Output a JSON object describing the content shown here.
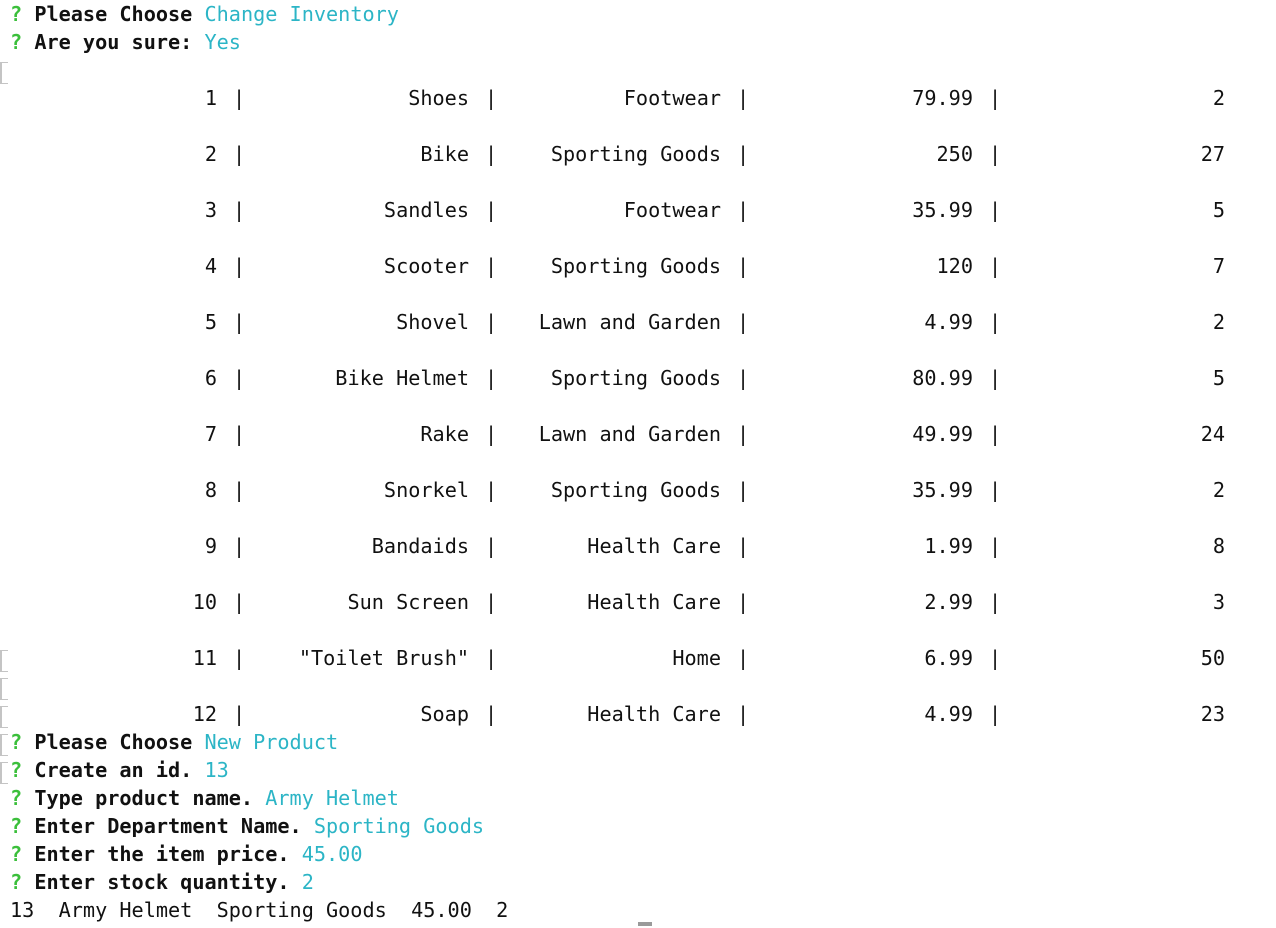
{
  "prompts_top": [
    {
      "mark": "?",
      "label": "Please Choose",
      "answer": "Change Inventory"
    },
    {
      "mark": "?",
      "label": "Are you sure:",
      "answer": "Yes"
    }
  ],
  "table": {
    "separator": "|",
    "rows": [
      {
        "id": "1",
        "name": "Shoes",
        "department": "Footwear",
        "price": "79.99",
        "quantity": "2"
      },
      {
        "id": "2",
        "name": "Bike",
        "department": "Sporting Goods",
        "price": "250",
        "quantity": "27"
      },
      {
        "id": "3",
        "name": "Sandles",
        "department": "Footwear",
        "price": "35.99",
        "quantity": "5"
      },
      {
        "id": "4",
        "name": "Scooter",
        "department": "Sporting Goods",
        "price": "120",
        "quantity": "7"
      },
      {
        "id": "5",
        "name": "Shovel",
        "department": "Lawn and Garden",
        "price": "4.99",
        "quantity": "2"
      },
      {
        "id": "6",
        "name": "Bike Helmet",
        "department": "Sporting Goods",
        "price": "80.99",
        "quantity": "5"
      },
      {
        "id": "7",
        "name": "Rake",
        "department": "Lawn and Garden",
        "price": "49.99",
        "quantity": "24"
      },
      {
        "id": "8",
        "name": "Snorkel",
        "department": "Sporting Goods",
        "price": "35.99",
        "quantity": "2"
      },
      {
        "id": "9",
        "name": "Bandaids",
        "department": "Health Care",
        "price": "1.99",
        "quantity": "8"
      },
      {
        "id": "10",
        "name": "Sun Screen",
        "department": "Health Care",
        "price": "2.99",
        "quantity": "3"
      },
      {
        "id": "11",
        "name": "\"Toilet Brush\"",
        "department": "Home",
        "price": "6.99",
        "quantity": "50"
      },
      {
        "id": "12",
        "name": "Soap",
        "department": "Health Care",
        "price": "4.99",
        "quantity": "23"
      }
    ]
  },
  "prompts_bottom": [
    {
      "mark": "?",
      "label": "Please Choose",
      "answer": "New Product"
    },
    {
      "mark": "?",
      "label": "Create an id.",
      "answer": "13"
    },
    {
      "mark": "?",
      "label": "Type product name.",
      "answer": "Army Helmet"
    },
    {
      "mark": "?",
      "label": "Enter Department Name.",
      "answer": "Sporting Goods"
    },
    {
      "mark": "?",
      "label": "Enter the item price.",
      "answer": "45.00"
    },
    {
      "mark": "?",
      "label": "Enter stock quantity.",
      "answer": "2"
    }
  ],
  "summary_line": "13  Army Helmet  Sporting Goods  45.00  2",
  "colors": {
    "prompt_mark": "#3bbf3b",
    "answer": "#2cb5c6",
    "text": "#111111",
    "background": "#ffffff"
  }
}
